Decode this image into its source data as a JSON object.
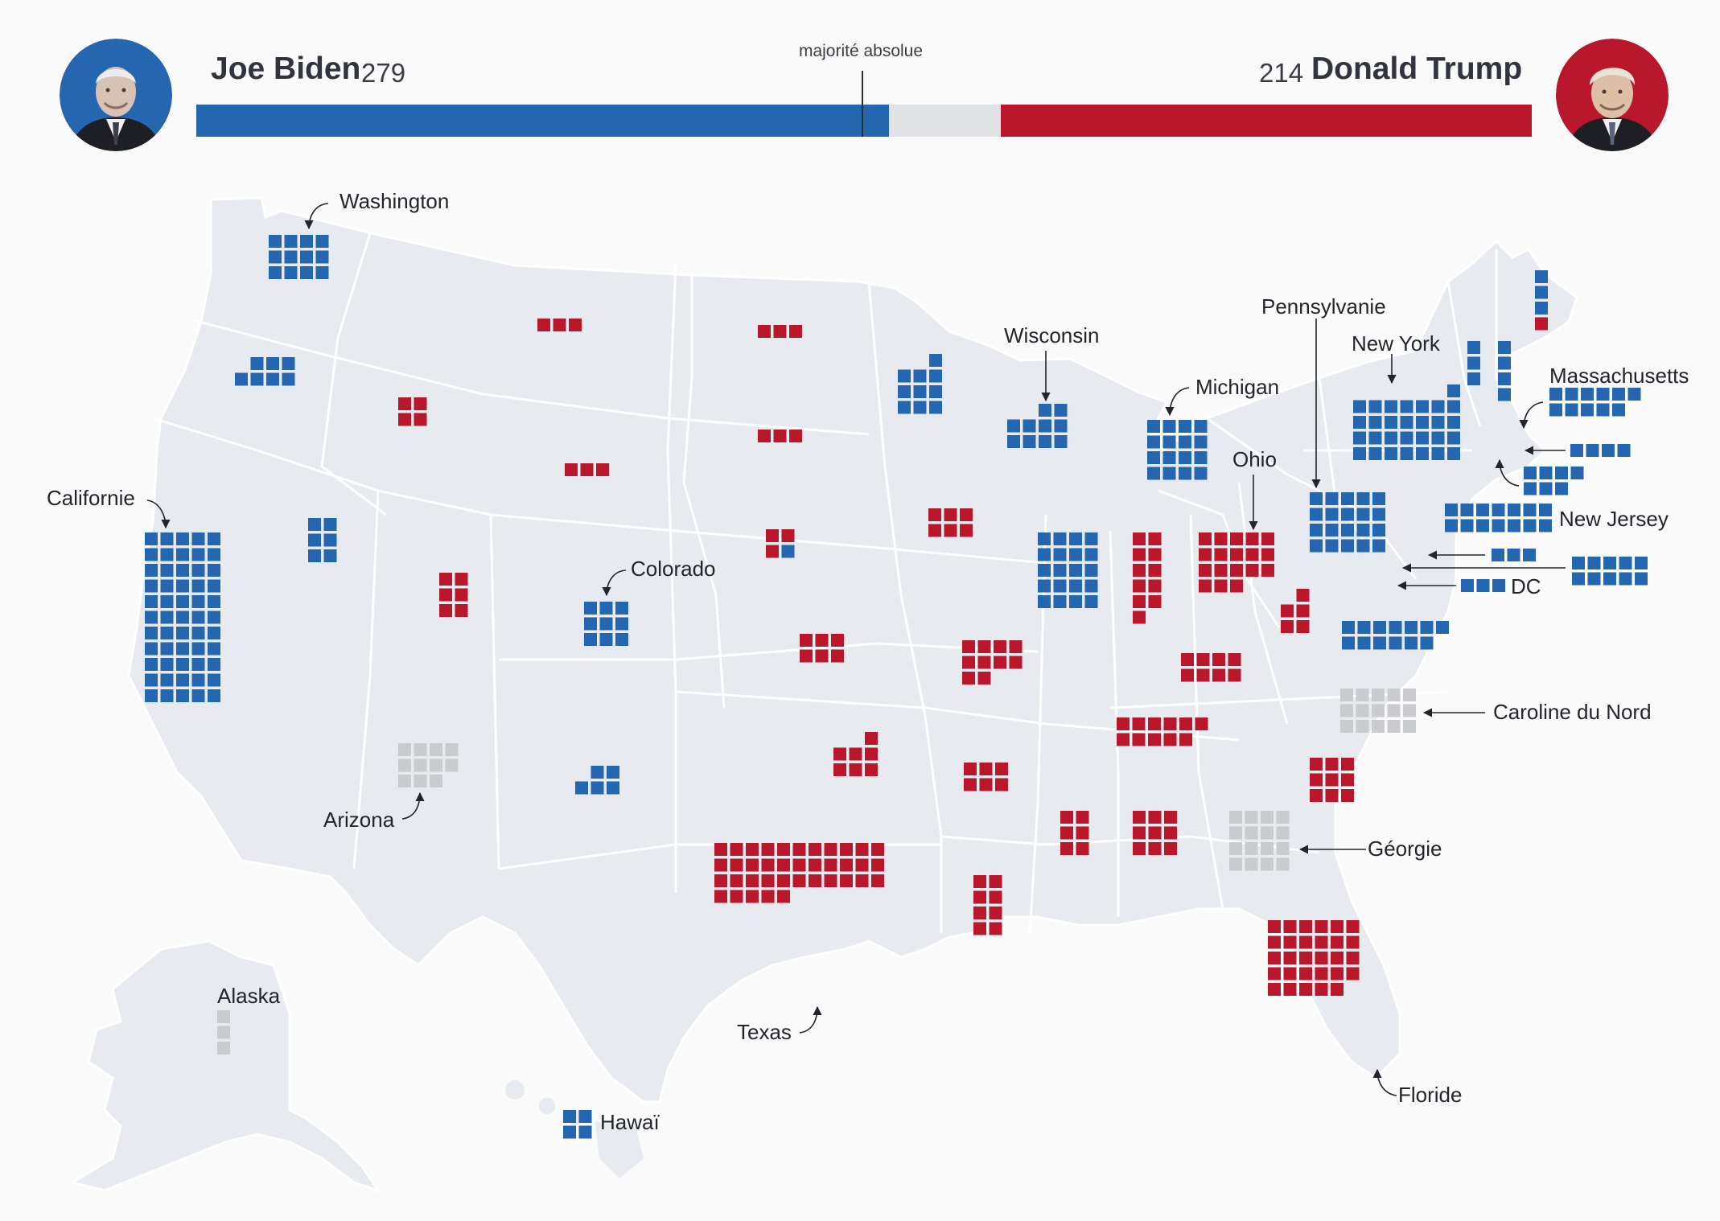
{
  "colors": {
    "dem": "#2467b0",
    "rep": "#b8172c",
    "undecided": "#c9cbce",
    "land": "#e7eaee",
    "border": "#ffffff",
    "background": "#fafafa"
  },
  "header": {
    "biden": {
      "name": "Joe Biden",
      "votes": "279",
      "votes_value": 279,
      "portrait_icon": "biden-portrait-icon"
    },
    "trump": {
      "name": "Donald Trump",
      "votes": "214",
      "votes_value": 214,
      "portrait_icon": "trump-portrait-icon"
    },
    "majority_label": "majorité absolue",
    "majority_value": 270,
    "total_votes": 538
  },
  "states": [
    {
      "id": "WA",
      "label": "Washington",
      "winner": "dem",
      "votes": 12
    },
    {
      "id": "OR",
      "winner": "dem",
      "votes": 7
    },
    {
      "id": "CA",
      "label": "Californie",
      "winner": "dem",
      "votes": 55
    },
    {
      "id": "NV",
      "winner": "dem",
      "votes": 6
    },
    {
      "id": "ID",
      "winner": "rep",
      "votes": 4
    },
    {
      "id": "MT",
      "winner": "rep",
      "votes": 3
    },
    {
      "id": "WY",
      "winner": "rep",
      "votes": 3
    },
    {
      "id": "UT",
      "winner": "rep",
      "votes": 6
    },
    {
      "id": "AZ",
      "label": "Arizona",
      "winner": "undecided",
      "votes": 11
    },
    {
      "id": "CO",
      "label": "Colorado",
      "winner": "dem",
      "votes": 9
    },
    {
      "id": "NM",
      "winner": "dem",
      "votes": 5
    },
    {
      "id": "ND",
      "winner": "rep",
      "votes": 3
    },
    {
      "id": "SD",
      "winner": "rep",
      "votes": 3
    },
    {
      "id": "NE",
      "winner": "rep",
      "votes": 4,
      "split_dem": 1
    },
    {
      "id": "KS",
      "winner": "rep",
      "votes": 6
    },
    {
      "id": "OK",
      "winner": "rep",
      "votes": 7
    },
    {
      "id": "TX",
      "label": "Texas",
      "winner": "rep",
      "votes": 38
    },
    {
      "id": "MN",
      "winner": "dem",
      "votes": 10
    },
    {
      "id": "IA",
      "winner": "rep",
      "votes": 6
    },
    {
      "id": "MO",
      "winner": "rep",
      "votes": 10
    },
    {
      "id": "AR",
      "winner": "rep",
      "votes": 6
    },
    {
      "id": "LA",
      "winner": "rep",
      "votes": 8
    },
    {
      "id": "WI",
      "label": "Wisconsin",
      "winner": "dem",
      "votes": 10
    },
    {
      "id": "IL",
      "winner": "dem",
      "votes": 20
    },
    {
      "id": "MI",
      "label": "Michigan",
      "winner": "dem",
      "votes": 16
    },
    {
      "id": "IN",
      "winner": "rep",
      "votes": 11
    },
    {
      "id": "OH",
      "label": "Ohio",
      "winner": "rep",
      "votes": 18
    },
    {
      "id": "KY",
      "winner": "rep",
      "votes": 8
    },
    {
      "id": "TN",
      "winner": "rep",
      "votes": 11
    },
    {
      "id": "MS",
      "winner": "rep",
      "votes": 6
    },
    {
      "id": "AL",
      "winner": "rep",
      "votes": 9
    },
    {
      "id": "GA",
      "label": "Géorgie",
      "winner": "undecided",
      "votes": 16
    },
    {
      "id": "FL",
      "label": "Floride",
      "winner": "rep",
      "votes": 29
    },
    {
      "id": "SC",
      "winner": "rep",
      "votes": 9
    },
    {
      "id": "NC",
      "label": "Caroline du Nord",
      "winner": "undecided",
      "votes": 15
    },
    {
      "id": "VA",
      "winner": "dem",
      "votes": 13
    },
    {
      "id": "WV",
      "winner": "rep",
      "votes": 5
    },
    {
      "id": "PA",
      "label": "Pennsylvanie",
      "winner": "dem",
      "votes": 20
    },
    {
      "id": "NY",
      "label": "New York",
      "winner": "dem",
      "votes": 29
    },
    {
      "id": "VT",
      "winner": "dem",
      "votes": 3
    },
    {
      "id": "NH",
      "winner": "dem",
      "votes": 4
    },
    {
      "id": "ME",
      "winner": "dem",
      "votes": 4,
      "split_rep": 1
    },
    {
      "id": "MA",
      "label": "Massachusetts",
      "winner": "dem",
      "votes": 11
    },
    {
      "id": "RI",
      "winner": "dem",
      "votes": 4
    },
    {
      "id": "CT",
      "winner": "dem",
      "votes": 7
    },
    {
      "id": "NJ",
      "label": "New Jersey",
      "winner": "dem",
      "votes": 14
    },
    {
      "id": "DE",
      "winner": "dem",
      "votes": 3
    },
    {
      "id": "MD",
      "winner": "dem",
      "votes": 10
    },
    {
      "id": "DC",
      "label": "DC",
      "winner": "dem",
      "votes": 3
    },
    {
      "id": "AK",
      "label": "Alaska",
      "winner": "undecided",
      "votes": 3
    },
    {
      "id": "HI",
      "label": "Hawaï",
      "winner": "dem",
      "votes": 4
    }
  ]
}
